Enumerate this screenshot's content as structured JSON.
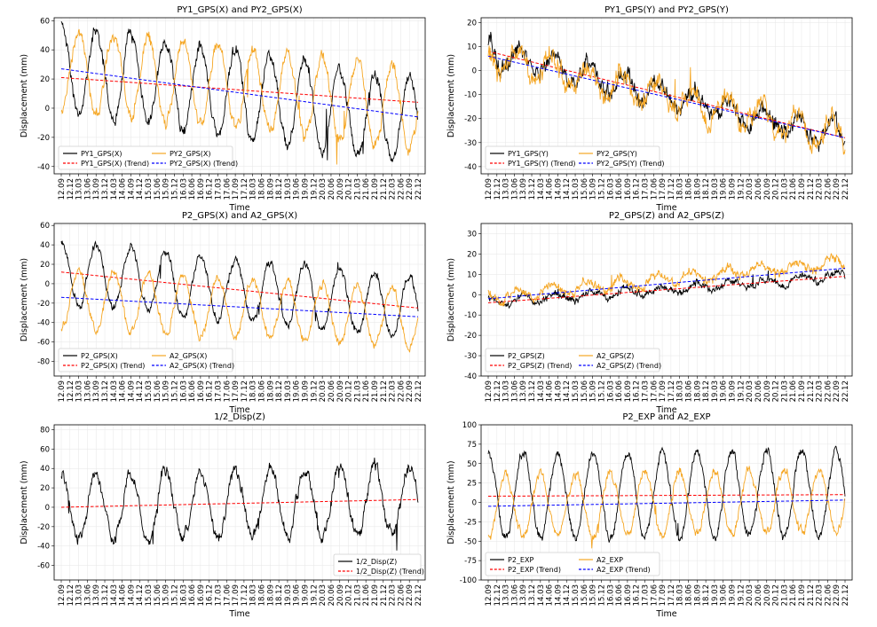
{
  "chart_data": [
    {
      "type": "line",
      "title": "PY1_GPS(X) and PY2_GPS(X)",
      "xlabel": "Time",
      "ylabel": "Displacement (mm)",
      "ylim": [
        -45,
        62
      ],
      "yticks": [
        -40,
        -20,
        0,
        20,
        40,
        60
      ],
      "x_ticks": [
        "12.09",
        "12.12",
        "13.03",
        "13.06",
        "13.09",
        "13.12",
        "14.03",
        "14.06",
        "14.09",
        "14.12",
        "15.03",
        "15.06",
        "15.09",
        "15.12",
        "16.03",
        "16.06",
        "16.09",
        "16.12",
        "17.03",
        "17.06",
        "17.09",
        "17.12",
        "18.03",
        "18.06",
        "18.09",
        "18.12",
        "19.03",
        "19.06",
        "19.09",
        "19.12",
        "20.03",
        "20.06",
        "20.09",
        "20.12",
        "21.03",
        "21.06",
        "21.09",
        "21.12",
        "22.03",
        "22.06",
        "22.09",
        "22.12"
      ],
      "legend_position": "lower-left",
      "grid": true,
      "series": [
        {
          "name": "PY1_GPS(X)",
          "color": "#000000",
          "style": "solid",
          "kind": "signal",
          "start": 28,
          "end": -10,
          "amp": 30,
          "phase": 0.0,
          "noise": 6,
          "seed": 11
        },
        {
          "name": "PY1_GPS(X) (Trend)",
          "color": "#ff0000",
          "style": "dashed",
          "kind": "trend",
          "values": [
            21,
            4
          ]
        },
        {
          "name": "PY2_GPS(X)",
          "color": "#f5a623",
          "style": "solid",
          "kind": "signal",
          "start": 26,
          "end": 0,
          "amp": 28,
          "phase": 3.14,
          "noise": 6,
          "seed": 12
        },
        {
          "name": "PY2_GPS(X) (Trend)",
          "color": "#0000ff",
          "style": "dashed",
          "kind": "trend",
          "values": [
            27,
            -6
          ]
        }
      ]
    },
    {
      "type": "line",
      "title": "PY1_GPS(Y) and PY2_GPS(Y)",
      "xlabel": "Time",
      "ylabel": "Displacement (mm)",
      "ylim": [
        -43,
        22
      ],
      "yticks": [
        -40,
        -30,
        -20,
        -10,
        0,
        10,
        20
      ],
      "x_ticks": [
        "12.09",
        "12.12",
        "13.03",
        "13.06",
        "13.09",
        "13.12",
        "14.03",
        "14.06",
        "14.09",
        "14.12",
        "15.03",
        "15.06",
        "15.09",
        "15.12",
        "16.03",
        "16.06",
        "16.09",
        "16.12",
        "17.03",
        "17.06",
        "17.09",
        "17.12",
        "18.03",
        "18.06",
        "18.09",
        "18.12",
        "19.03",
        "19.06",
        "19.09",
        "19.12",
        "20.03",
        "20.06",
        "20.09",
        "20.12",
        "21.03",
        "21.06",
        "21.09",
        "21.12",
        "22.03",
        "22.06",
        "22.09",
        "22.12"
      ],
      "legend_position": "lower-left",
      "grid": true,
      "series": [
        {
          "name": "PY1_GPS(Y)",
          "color": "#000000",
          "style": "solid",
          "kind": "signal",
          "start": 8,
          "end": -28,
          "amp": 5,
          "phase": 0.5,
          "noise": 5,
          "seed": 21
        },
        {
          "name": "PY1_GPS(Y) (Trend)",
          "color": "#ff0000",
          "style": "dashed",
          "kind": "trend",
          "values": [
            8,
            -28
          ]
        },
        {
          "name": "PY2_GPS(Y)",
          "color": "#f5a623",
          "style": "solid",
          "kind": "signal",
          "start": 6,
          "end": -28,
          "amp": 6,
          "phase": 0.9,
          "noise": 6,
          "seed": 22
        },
        {
          "name": "PY2_GPS(Y) (Trend)",
          "color": "#0000ff",
          "style": "dashed",
          "kind": "trend",
          "values": [
            6,
            -28
          ]
        }
      ]
    },
    {
      "type": "line",
      "title": "P2_GPS(X) and A2_GPS(X)",
      "xlabel": "Time",
      "ylabel": "Displacement (mm)",
      "ylim": [
        -95,
        62
      ],
      "yticks": [
        -80,
        -60,
        -40,
        -20,
        0,
        20,
        40,
        60
      ],
      "x_ticks": [
        "12.09",
        "12.12",
        "13.03",
        "13.06",
        "13.09",
        "13.12",
        "14.03",
        "14.06",
        "14.09",
        "14.12",
        "15.03",
        "15.06",
        "15.09",
        "15.12",
        "16.03",
        "16.06",
        "16.09",
        "16.12",
        "17.03",
        "17.06",
        "17.09",
        "17.12",
        "18.03",
        "18.06",
        "18.09",
        "18.12",
        "19.03",
        "19.06",
        "19.09",
        "19.12",
        "20.03",
        "20.06",
        "20.09",
        "20.12",
        "21.03",
        "21.06",
        "21.09",
        "21.12",
        "22.03",
        "22.06",
        "22.09",
        "22.12"
      ],
      "legend_position": "lower-left",
      "grid": true,
      "series": [
        {
          "name": "P2_GPS(X)",
          "color": "#000000",
          "style": "solid",
          "kind": "signal",
          "start": 12,
          "end": -25,
          "amp": 32,
          "phase": 0.0,
          "noise": 6,
          "seed": 31
        },
        {
          "name": "P2_GPS(X) (Trend)",
          "color": "#ff0000",
          "style": "dashed",
          "kind": "trend",
          "values": [
            12,
            -25
          ]
        },
        {
          "name": "A2_GPS(X)",
          "color": "#f5a623",
          "style": "solid",
          "kind": "signal",
          "start": -15,
          "end": -35,
          "amp": 30,
          "phase": 3.14,
          "noise": 6,
          "seed": 32
        },
        {
          "name": "A2_GPS(X) (Trend)",
          "color": "#0000ff",
          "style": "dashed",
          "kind": "trend",
          "values": [
            -14,
            -34
          ]
        }
      ]
    },
    {
      "type": "line",
      "title": "P2_GPS(Z) and A2_GPS(Z)",
      "xlabel": "Time",
      "ylabel": "Displacement (mm)",
      "ylim": [
        -40,
        35
      ],
      "yticks": [
        -40,
        -30,
        -20,
        -10,
        0,
        10,
        20,
        30
      ],
      "x_ticks": [
        "12.09",
        "12.12",
        "13.03",
        "13.06",
        "13.09",
        "13.12",
        "14.03",
        "14.06",
        "14.09",
        "14.12",
        "15.03",
        "15.06",
        "15.09",
        "15.12",
        "16.03",
        "16.06",
        "16.09",
        "16.12",
        "17.03",
        "17.06",
        "17.09",
        "17.12",
        "18.03",
        "18.06",
        "18.09",
        "18.12",
        "19.03",
        "19.06",
        "19.09",
        "19.12",
        "20.03",
        "20.06",
        "20.09",
        "20.12",
        "21.03",
        "21.06",
        "21.09",
        "21.12",
        "22.03",
        "22.06",
        "22.09",
        "22.12"
      ],
      "legend_position": "lower-left",
      "grid": true,
      "series": [
        {
          "name": "P2_GPS(Z)",
          "color": "#000000",
          "style": "solid",
          "kind": "signal",
          "start": -4,
          "end": 9,
          "amp": 2,
          "phase": 0.0,
          "noise": 2.5,
          "seed": 41
        },
        {
          "name": "P2_GPS(Z) (Trend)",
          "color": "#ff0000",
          "style": "dashed",
          "kind": "trend",
          "values": [
            -4,
            9
          ]
        },
        {
          "name": "A2_GPS(Z)",
          "color": "#f5a623",
          "style": "solid",
          "kind": "signal",
          "start": -1,
          "end": 16,
          "amp": 3,
          "phase": 1.0,
          "noise": 3,
          "seed": 42
        },
        {
          "name": "A2_GPS(Z) (Trend)",
          "color": "#0000ff",
          "style": "dashed",
          "kind": "trend",
          "values": [
            -2,
            13
          ]
        }
      ]
    },
    {
      "type": "line",
      "title": "1/2_Disp(Z)",
      "xlabel": "Time",
      "ylabel": "Displacement (mm)",
      "ylim": [
        -75,
        85
      ],
      "yticks": [
        -60,
        -40,
        -20,
        0,
        20,
        40,
        60,
        80
      ],
      "x_ticks": [
        "12.09",
        "12.12",
        "13.03",
        "13.06",
        "13.09",
        "13.12",
        "14.03",
        "14.06",
        "14.09",
        "14.12",
        "15.03",
        "15.06",
        "15.09",
        "15.12",
        "16.03",
        "16.06",
        "16.09",
        "16.12",
        "17.03",
        "17.06",
        "17.09",
        "17.12",
        "18.03",
        "18.06",
        "18.09",
        "18.12",
        "19.03",
        "19.06",
        "19.09",
        "19.12",
        "20.03",
        "20.06",
        "20.09",
        "20.12",
        "21.03",
        "21.06",
        "21.09",
        "21.12",
        "22.03",
        "22.06",
        "22.09",
        "22.12"
      ],
      "legend_position": "lower-right",
      "grid": true,
      "series": [
        {
          "name": "1/2_Disp(Z)",
          "color": "#000000",
          "style": "solid",
          "kind": "signal",
          "start": 0,
          "end": 8,
          "amp": 35,
          "phase": 0.0,
          "noise": 9,
          "seed": 51
        },
        {
          "name": "1/2_Disp(Z) (Trend)",
          "color": "#ff0000",
          "style": "dashed",
          "kind": "trend",
          "values": [
            0,
            8
          ]
        }
      ]
    },
    {
      "type": "line",
      "title": "P2_EXP and A2_EXP",
      "xlabel": "Time",
      "ylabel": "Displacement (mm)",
      "ylim": [
        -100,
        100
      ],
      "yticks": [
        -100,
        -75,
        -50,
        -25,
        0,
        25,
        50,
        75,
        100
      ],
      "x_ticks": [
        "12.09",
        "12.12",
        "13.03",
        "13.06",
        "13.09",
        "13.12",
        "14.03",
        "14.06",
        "14.09",
        "14.12",
        "15.03",
        "15.06",
        "15.09",
        "15.12",
        "16.03",
        "16.06",
        "16.09",
        "16.12",
        "17.03",
        "17.06",
        "17.09",
        "17.12",
        "18.03",
        "18.06",
        "18.09",
        "18.12",
        "19.03",
        "19.06",
        "19.09",
        "19.12",
        "20.03",
        "20.06",
        "20.09",
        "20.12",
        "21.03",
        "21.06",
        "21.09",
        "21.12",
        "22.03",
        "22.06",
        "22.09",
        "22.12"
      ],
      "legend_position": "lower-left",
      "grid": true,
      "series": [
        {
          "name": "P2_EXP",
          "color": "#000000",
          "style": "solid",
          "kind": "signal",
          "start": 8,
          "end": 12,
          "amp": 55,
          "phase": 0.0,
          "noise": 8,
          "seed": 61
        },
        {
          "name": "P2_EXP (Trend)",
          "color": "#ff0000",
          "style": "dashed",
          "kind": "trend",
          "values": [
            8,
            10
          ]
        },
        {
          "name": "A2_EXP",
          "color": "#f5a623",
          "style": "solid",
          "kind": "signal",
          "start": -5,
          "end": 3,
          "amp": 40,
          "phase": 3.14,
          "noise": 8,
          "seed": 62
        },
        {
          "name": "A2_EXP (Trend)",
          "color": "#0000ff",
          "style": "dashed",
          "kind": "trend",
          "values": [
            -5,
            3
          ]
        }
      ]
    }
  ]
}
